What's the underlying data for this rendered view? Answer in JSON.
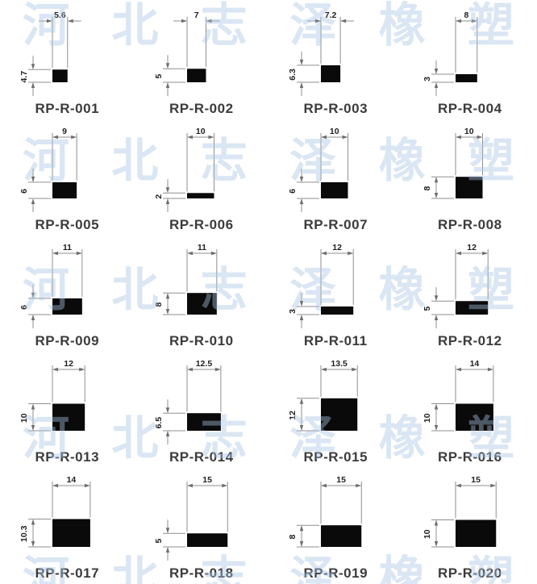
{
  "sheet": {
    "description": "rubber sealing strip rectangular profile catalog",
    "columns": 4,
    "rows": 5
  },
  "watermark": {
    "text": "河北志泽橡塑",
    "chars": [
      "河",
      "北",
      "志",
      "泽",
      "橡",
      "塑"
    ],
    "color": "#a9c4e4",
    "row_count": 5
  },
  "profiles": [
    {
      "id": "RP-R-001",
      "width": "5.6",
      "height": "4.7"
    },
    {
      "id": "RP-R-002",
      "width": "7",
      "height": "5"
    },
    {
      "id": "RP-R-003",
      "width": "7.2",
      "height": "6.3"
    },
    {
      "id": "RP-R-004",
      "width": "8",
      "height": "3"
    },
    {
      "id": "RP-R-005",
      "width": "9",
      "height": "6"
    },
    {
      "id": "RP-R-006",
      "width": "10",
      "height": "2"
    },
    {
      "id": "RP-R-007",
      "width": "10",
      "height": "6"
    },
    {
      "id": "RP-R-008",
      "width": "10",
      "height": "8"
    },
    {
      "id": "RP-R-009",
      "width": "11",
      "height": "6"
    },
    {
      "id": "RP-R-010",
      "width": "11",
      "height": "8"
    },
    {
      "id": "RP-R-011",
      "width": "12",
      "height": "3"
    },
    {
      "id": "RP-R-012",
      "width": "12",
      "height": "5"
    },
    {
      "id": "RP-R-013",
      "width": "12",
      "height": "10"
    },
    {
      "id": "RP-R-014",
      "width": "12.5",
      "height": "6.5"
    },
    {
      "id": "RP-R-015",
      "width": "13.5",
      "height": "12"
    },
    {
      "id": "RP-R-016",
      "width": "14",
      "height": "10"
    },
    {
      "id": "RP-R-017",
      "width": "14",
      "height": "10.3"
    },
    {
      "id": "RP-R-018",
      "width": "15",
      "height": "5"
    },
    {
      "id": "RP-R-019",
      "width": "15",
      "height": "8"
    },
    {
      "id": "RP-R-020",
      "width": "15",
      "height": "10"
    }
  ],
  "colors": {
    "profile_fill": "#0a0a0a",
    "dim_line": "#8f8f8f",
    "dim_text": "#1f1f1f",
    "label_text": "#3c3c3c",
    "background": "#ffffff"
  }
}
